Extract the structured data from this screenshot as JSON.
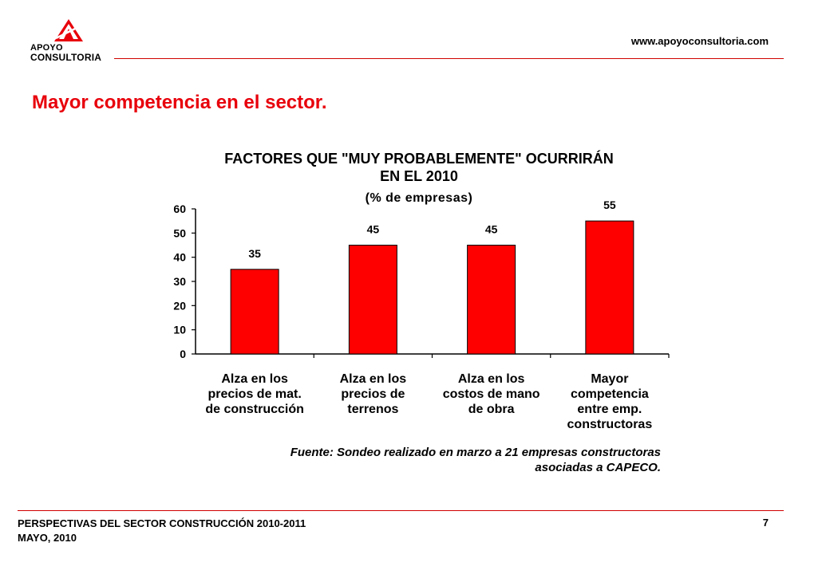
{
  "header": {
    "logo_line1": "APOYO",
    "logo_line2": "CONSULTORIA",
    "url": "www.apoyoconsultoria.com"
  },
  "slide_title": "Mayor competencia en el sector.",
  "chart_data": {
    "type": "bar",
    "title_line1": "FACTORES QUE \"MUY PROBABLEMENTE\"  OCURRIRÁN",
    "title_line2": "EN EL 2010",
    "subtitle": "(% de empresas)",
    "categories": [
      [
        "Alza en los",
        "precios de mat.",
        "de construcción"
      ],
      [
        "Alza en los",
        "precios de",
        "terrenos"
      ],
      [
        "Alza en los",
        "costos de mano",
        "de obra"
      ],
      [
        "Mayor",
        "competencia",
        "entre emp.",
        "constructoras"
      ]
    ],
    "values": [
      35,
      45,
      45,
      55
    ],
    "data_labels": [
      "35",
      "45",
      "45",
      "55"
    ],
    "ylim": [
      0,
      60
    ],
    "yticks": [
      0,
      10,
      20,
      30,
      40,
      50,
      60
    ],
    "bar_color": "#ff0000",
    "grid": false
  },
  "source": {
    "line1": "Fuente: Sondeo realizado en marzo a 21 empresas  constructoras",
    "line2": "asociadas a CAPECO."
  },
  "footer": {
    "line1": "PERSPECTIVAS DEL SECTOR CONSTRUCCIÓN 2010-2011",
    "line2": "MAYO, 2010",
    "page": "7"
  }
}
